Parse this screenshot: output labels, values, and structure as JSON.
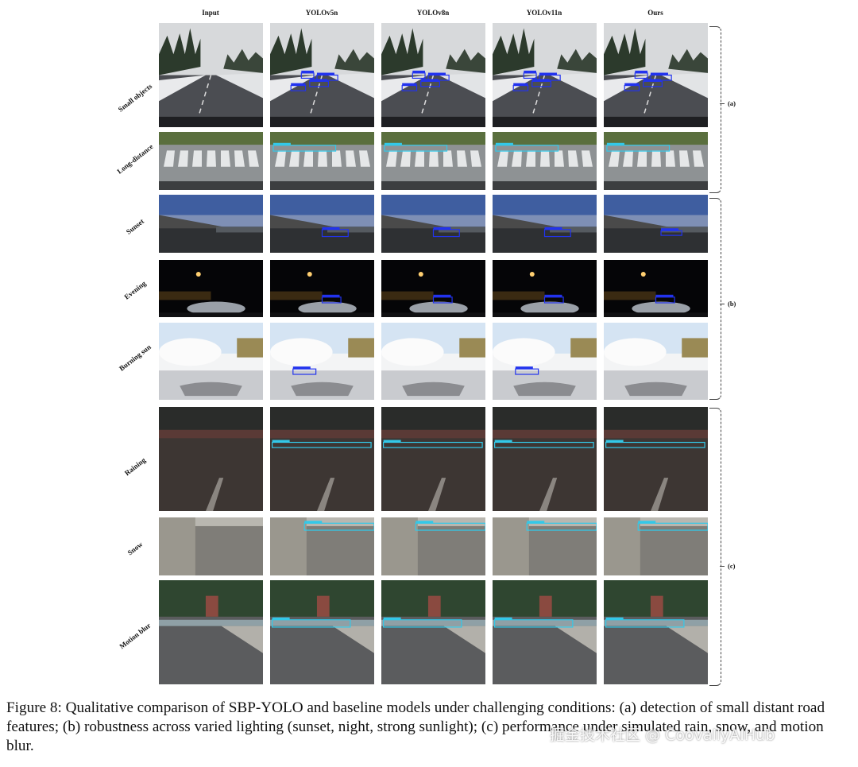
{
  "columns": [
    "Input",
    "YOLOv5n",
    "YOLOv8n",
    "YOLOv11n",
    "Ours"
  ],
  "rows": [
    {
      "label": "Small objects",
      "scene": "snow-road",
      "group": "a"
    },
    {
      "label": "Long-distance",
      "scene": "crosswalk",
      "group": "a"
    },
    {
      "label": "Sunset",
      "scene": "sunset",
      "group": "b"
    },
    {
      "label": "Evening",
      "scene": "evening",
      "group": "b"
    },
    {
      "label": "Burning sun",
      "scene": "burning-sun",
      "group": "b"
    },
    {
      "label": "Raining",
      "scene": "raining",
      "group": "c"
    },
    {
      "label": "Snow",
      "scene": "snow",
      "group": "c"
    },
    {
      "label": "Motion blur",
      "scene": "motion-blur",
      "group": "c"
    }
  ],
  "groups": {
    "a": "(a)",
    "b": "(b)",
    "c": "(c)"
  },
  "caption": "Figure 8: Qualitative comparison of SBP-YOLO and baseline models under challenging conditions: (a) detection of small distant road features; (b) robustness across varied lighting (sunset, night, strong sunlight); (c) performance under simulated rain, snow, and motion blur.",
  "watermark": "掘金技术社区 @ CoovallyAIHub",
  "colors": {
    "pothole_box": "#2233ee",
    "speedbump_box": "#33c8e8"
  }
}
